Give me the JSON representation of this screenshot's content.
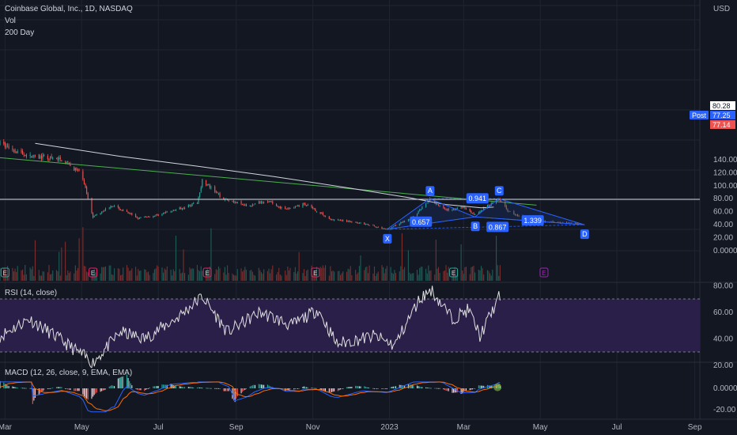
{
  "legend": {
    "symbol": "Coinbase Global, Inc., 1D, NASDAQ",
    "vol": "Vol",
    "ma": "200 Day",
    "rsi": "RSI (14, close)",
    "macd": "MACD (12, 26, close, 9, EMA, EMA)"
  },
  "currency": "USD",
  "colors": {
    "bg": "#131722",
    "grid": "#1f2430",
    "up": "#26a69a",
    "down": "#ef5350",
    "pattern": "#2962ff",
    "ma": "#d1d4dc",
    "trend": "#4caf50",
    "rsi": "#e0e0e0",
    "rsi_band": "#2a1f48",
    "macd": "#2962ff",
    "signal": "#ff6d00",
    "earnings": "#e91e63",
    "post": "#2962ff"
  },
  "price_labels": {
    "last": "80.28",
    "post_tag": "Post",
    "post": "77.25",
    "close": "77.14"
  },
  "chart_data": {
    "type": "candlestick",
    "title": "Coinbase Global, Inc., 1D, NASDAQ",
    "price_axis": {
      "ticks": [
        "140.00",
        "120.00",
        "100.00",
        "80.00",
        "60.00",
        "40.00",
        "20.00",
        "0.0000"
      ],
      "ylim": [
        0,
        150
      ]
    },
    "x_ticks": [
      "Mar",
      "May",
      "Jul",
      "Sep",
      "Nov",
      "2023",
      "Mar",
      "May",
      "Jul",
      "Sep"
    ],
    "price_path": [
      {
        "x": "2022-02-25",
        "y": 165
      },
      {
        "x": "2022-03-20",
        "y": 145
      },
      {
        "x": "2022-04-15",
        "y": 140
      },
      {
        "x": "2022-05-01",
        "y": 118
      },
      {
        "x": "2022-05-10",
        "y": 52
      },
      {
        "x": "2022-05-25",
        "y": 70
      },
      {
        "x": "2022-06-15",
        "y": 50
      },
      {
        "x": "2022-07-01",
        "y": 55
      },
      {
        "x": "2022-07-20",
        "y": 66
      },
      {
        "x": "2022-08-01",
        "y": 74
      },
      {
        "x": "2022-08-05",
        "y": 108
      },
      {
        "x": "2022-08-20",
        "y": 82
      },
      {
        "x": "2022-09-10",
        "y": 68
      },
      {
        "x": "2022-09-25",
        "y": 78
      },
      {
        "x": "2022-10-10",
        "y": 63
      },
      {
        "x": "2022-10-25",
        "y": 72
      },
      {
        "x": "2022-11-05",
        "y": 60
      },
      {
        "x": "2022-11-15",
        "y": 48
      },
      {
        "x": "2022-12-05",
        "y": 44
      },
      {
        "x": "2022-12-30",
        "y": 33
      },
      {
        "x": "2023-01-20",
        "y": 52
      },
      {
        "x": "2023-02-02",
        "y": 80
      },
      {
        "x": "2023-02-15",
        "y": 62
      },
      {
        "x": "2023-03-01",
        "y": 67
      },
      {
        "x": "2023-03-10",
        "y": 55
      },
      {
        "x": "2023-03-20",
        "y": 69
      },
      {
        "x": "2023-03-29",
        "y": 80
      },
      {
        "x": "2023-04-05",
        "y": 62
      },
      {
        "x": "2023-04-20",
        "y": 47
      },
      {
        "x": "2023-05-10",
        "y": 44
      },
      {
        "x": "2023-06-05",
        "y": 41
      }
    ],
    "harmonic_points": [
      {
        "label": "X",
        "x": "2022-12-30",
        "y": 33
      },
      {
        "label": "A",
        "x": "2023-02-02",
        "y": 80
      },
      {
        "label": "B",
        "x": "2023-03-10",
        "y": 52
      },
      {
        "label": "C",
        "x": "2023-03-29",
        "y": 80
      },
      {
        "label": "D",
        "x": "2023-06-05",
        "y": 40
      }
    ],
    "ratios": [
      {
        "label": "0.941",
        "x": "2023-03-12",
        "y": 80
      },
      {
        "label": "0.657",
        "x": "2023-01-26",
        "y": 44
      },
      {
        "label": "0.867",
        "x": "2023-03-28",
        "y": 36
      },
      {
        "label": "1.339",
        "x": "2023-04-25",
        "y": 46
      }
    ],
    "ma_200": [
      {
        "x": "2022-03-25",
        "y": 165
      },
      {
        "x": "2022-06-01",
        "y": 145
      },
      {
        "x": "2022-08-01",
        "y": 130
      },
      {
        "x": "2022-10-01",
        "y": 114
      },
      {
        "x": "2022-12-01",
        "y": 96
      },
      {
        "x": "2023-01-15",
        "y": 82
      },
      {
        "x": "2023-02-15",
        "y": 71
      },
      {
        "x": "2023-03-15",
        "y": 66
      },
      {
        "x": "2023-03-25",
        "y": 67
      }
    ],
    "trendline": [
      {
        "x": "2022-02-25",
        "y": 143
      },
      {
        "x": "2023-04-28",
        "y": 70
      }
    ],
    "horizontal_line": 79,
    "rsi": {
      "ticks": [
        "80.00",
        "60.00",
        "40.00",
        "20.00"
      ],
      "ylim": [
        15,
        85
      ],
      "bands": [
        30,
        70
      ],
      "values": [
        {
          "x": "2022-02-25",
          "y": 42
        },
        {
          "x": "2022-03-20",
          "y": 55
        },
        {
          "x": "2022-04-10",
          "y": 42
        },
        {
          "x": "2022-05-10",
          "y": 22
        },
        {
          "x": "2022-06-01",
          "y": 45
        },
        {
          "x": "2022-06-20",
          "y": 40
        },
        {
          "x": "2022-07-15",
          "y": 55
        },
        {
          "x": "2022-08-05",
          "y": 72
        },
        {
          "x": "2022-08-25",
          "y": 45
        },
        {
          "x": "2022-09-20",
          "y": 60
        },
        {
          "x": "2022-10-15",
          "y": 50
        },
        {
          "x": "2022-11-05",
          "y": 62
        },
        {
          "x": "2022-11-20",
          "y": 36
        },
        {
          "x": "2022-12-20",
          "y": 42
        },
        {
          "x": "2023-01-05",
          "y": 35
        },
        {
          "x": "2023-01-25",
          "y": 70
        },
        {
          "x": "2023-02-03",
          "y": 77
        },
        {
          "x": "2023-02-20",
          "y": 55
        },
        {
          "x": "2023-03-05",
          "y": 62
        },
        {
          "x": "2023-03-14",
          "y": 42
        },
        {
          "x": "2023-03-29",
          "y": 71
        }
      ]
    },
    "macd": {
      "ticks": [
        "0.0000",
        "-20.00"
      ],
      "ylim": [
        -25,
        10
      ]
    }
  }
}
